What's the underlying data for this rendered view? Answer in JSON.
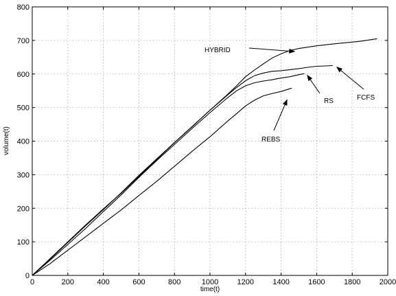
{
  "chart_data": {
    "type": "line",
    "title": "",
    "xlabel": "time(t)",
    "ylabel": "volume(t)",
    "xlim": [
      0,
      2000
    ],
    "ylim": [
      0,
      800
    ],
    "xticks": [
      0,
      200,
      400,
      600,
      800,
      1000,
      1200,
      1400,
      1600,
      1800,
      2000
    ],
    "yticks": [
      0,
      100,
      200,
      300,
      400,
      500,
      600,
      700,
      800
    ],
    "grid": true,
    "legend": "none",
    "series": [
      {
        "name": "HYBRID",
        "points": [
          [
            0,
            0
          ],
          [
            100,
            50
          ],
          [
            200,
            100
          ],
          [
            300,
            150
          ],
          [
            400,
            198
          ],
          [
            500,
            245
          ],
          [
            600,
            295
          ],
          [
            700,
            345
          ],
          [
            800,
            395
          ],
          [
            900,
            443
          ],
          [
            1000,
            492
          ],
          [
            1100,
            540
          ],
          [
            1150,
            565
          ],
          [
            1200,
            592
          ],
          [
            1250,
            612
          ],
          [
            1300,
            630
          ],
          [
            1350,
            648
          ],
          [
            1400,
            660
          ],
          [
            1450,
            670
          ],
          [
            1500,
            676
          ],
          [
            1600,
            684
          ],
          [
            1700,
            690
          ],
          [
            1800,
            695
          ],
          [
            1850,
            698
          ],
          [
            1900,
            702
          ],
          [
            1940,
            705
          ]
        ]
      },
      {
        "name": "FCFS",
        "points": [
          [
            0,
            0
          ],
          [
            100,
            48
          ],
          [
            200,
            98
          ],
          [
            300,
            148
          ],
          [
            400,
            196
          ],
          [
            500,
            246
          ],
          [
            600,
            298
          ],
          [
            700,
            347
          ],
          [
            800,
            396
          ],
          [
            900,
            444
          ],
          [
            1000,
            492
          ],
          [
            1100,
            538
          ],
          [
            1150,
            560
          ],
          [
            1200,
            580
          ],
          [
            1250,
            595
          ],
          [
            1300,
            603
          ],
          [
            1350,
            608
          ],
          [
            1400,
            610
          ],
          [
            1450,
            613
          ],
          [
            1500,
            616
          ],
          [
            1550,
            620
          ],
          [
            1600,
            623
          ],
          [
            1650,
            624
          ],
          [
            1690,
            625
          ]
        ]
      },
      {
        "name": "RS",
        "points": [
          [
            0,
            0
          ],
          [
            100,
            45
          ],
          [
            200,
            92
          ],
          [
            300,
            140
          ],
          [
            400,
            190
          ],
          [
            500,
            240
          ],
          [
            600,
            292
          ],
          [
            700,
            342
          ],
          [
            800,
            390
          ],
          [
            900,
            438
          ],
          [
            1000,
            485
          ],
          [
            1100,
            530
          ],
          [
            1150,
            550
          ],
          [
            1200,
            565
          ],
          [
            1250,
            574
          ],
          [
            1300,
            579
          ],
          [
            1350,
            583
          ],
          [
            1400,
            588
          ],
          [
            1450,
            592
          ],
          [
            1500,
            598
          ],
          [
            1530,
            601
          ]
        ]
      },
      {
        "name": "REBS",
        "points": [
          [
            0,
            0
          ],
          [
            100,
            35
          ],
          [
            200,
            75
          ],
          [
            300,
            115
          ],
          [
            400,
            155
          ],
          [
            500,
            195
          ],
          [
            600,
            238
          ],
          [
            700,
            280
          ],
          [
            800,
            325
          ],
          [
            900,
            370
          ],
          [
            1000,
            413
          ],
          [
            1100,
            460
          ],
          [
            1150,
            482
          ],
          [
            1200,
            505
          ],
          [
            1250,
            522
          ],
          [
            1300,
            535
          ],
          [
            1350,
            542
          ],
          [
            1400,
            548
          ],
          [
            1460,
            558
          ]
        ]
      }
    ],
    "annotations": [
      {
        "text": "HYBRID",
        "arrow_to": [
          1480,
          667
        ]
      },
      {
        "text": "FCFS",
        "arrow_to": [
          1710,
          622
        ]
      },
      {
        "text": "RS",
        "arrow_to": [
          1545,
          598
        ]
      },
      {
        "text": "REBS",
        "arrow_to": [
          1435,
          525
        ]
      }
    ]
  }
}
